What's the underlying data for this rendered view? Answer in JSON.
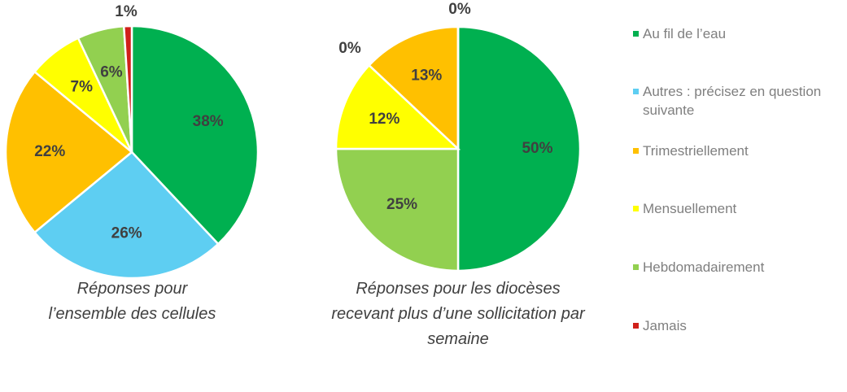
{
  "chart_data": [
    {
      "type": "pie",
      "categories": [
        "Au fil de l’eau",
        "Autres : précisez en question suivante",
        "Trimestriellement",
        "Mensuellement",
        "Hebdomadairement",
        "Jamais"
      ],
      "values": [
        38,
        26,
        22,
        7,
        6,
        1
      ],
      "value_labels": [
        "38%",
        "26%",
        "22%",
        "7%",
        "6%",
        "1%"
      ],
      "colors": [
        "#00b050",
        "#5ecef2",
        "#ffc000",
        "#ffff00",
        "#92d050",
        "#d0201a"
      ],
      "caption": "Réponses pour l’ensemble des cellules"
    },
    {
      "type": "pie",
      "categories": [
        "Au fil de l’eau",
        "Hebdomadairement",
        "Mensuellement",
        "Trimestriellement",
        "Autres : précisez en question suivante",
        "Jamais"
      ],
      "values": [
        50,
        25,
        12,
        13,
        0,
        0
      ],
      "value_labels": [
        "50%",
        "25%",
        "12%",
        "13%",
        "0%",
        "0%"
      ],
      "colors": [
        "#00b050",
        "#92d050",
        "#ffff00",
        "#ffc000",
        "#5ecef2",
        "#d0201a"
      ],
      "caption": "Réponses pour les diocèses recevant plus d’une sollicitation par semaine"
    }
  ],
  "legend": [
    {
      "name": "Au fil de l’eau",
      "color": "#00b050"
    },
    {
      "name": "Autres : précisez en question suivante",
      "color": "#5ecef2"
    },
    {
      "name": "Trimestriellement",
      "color": "#ffc000"
    },
    {
      "name": "Mensuellement",
      "color": "#ffff00"
    },
    {
      "name": "Hebdomadairement",
      "color": "#92d050"
    },
    {
      "name": "Jamais",
      "color": "#d0201a"
    }
  ]
}
